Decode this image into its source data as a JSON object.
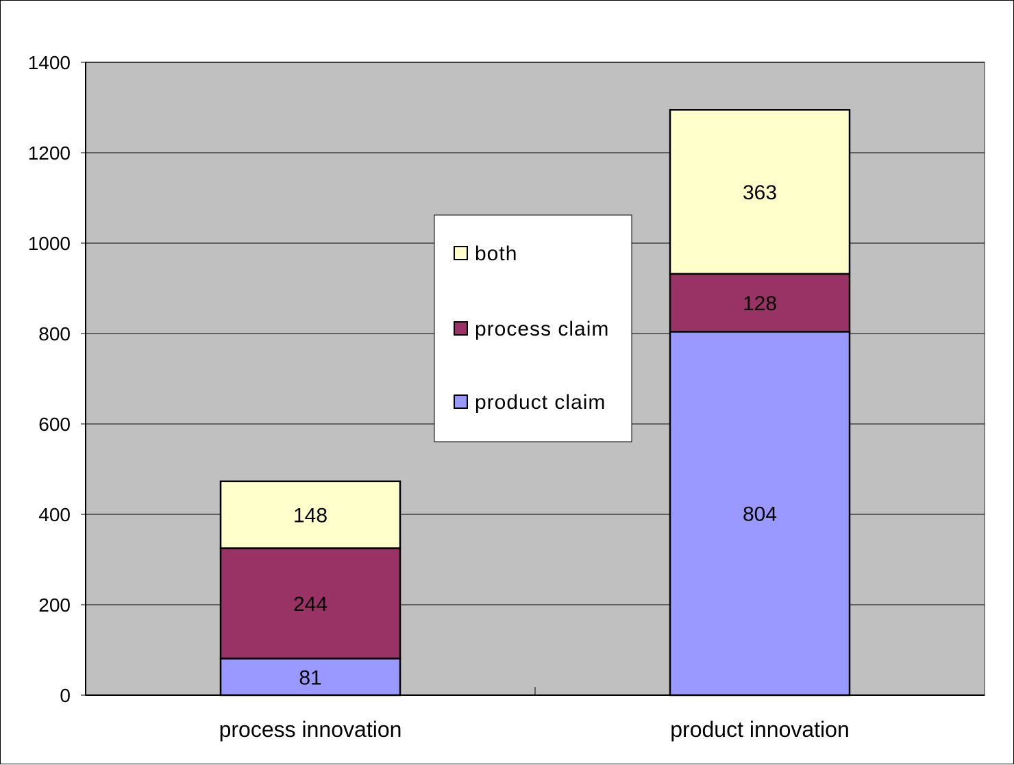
{
  "chart_data": {
    "type": "bar",
    "stacked": true,
    "title": "",
    "xlabel": "",
    "ylabel": "",
    "ylim": [
      0,
      1400
    ],
    "yticks": [
      0,
      200,
      400,
      600,
      800,
      1000,
      1200,
      1400
    ],
    "grid": true,
    "legend_position": "center",
    "categories": [
      "process innovation",
      "product innovation"
    ],
    "series": [
      {
        "name": "product claim",
        "color": "#9999ff",
        "values": [
          81,
          804
        ]
      },
      {
        "name": "process claim",
        "color": "#993366",
        "values": [
          244,
          128
        ]
      },
      {
        "name": "both",
        "color": "#ffffcc",
        "values": [
          148,
          363
        ]
      }
    ],
    "plot_background": "#c0c0c0"
  }
}
